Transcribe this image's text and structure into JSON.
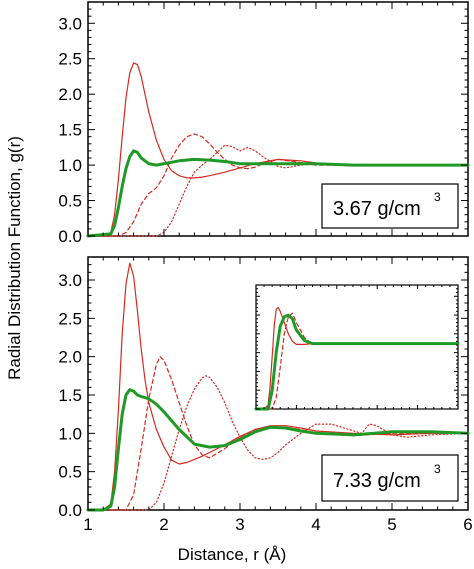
{
  "chart_data": [
    {
      "type": "line",
      "panel": "top",
      "annotation": {
        "text": "3.67 g/cm",
        "sup": "3"
      },
      "xlim": [
        1,
        6
      ],
      "ylim": [
        0,
        3.3
      ],
      "x_ticks": [
        "1",
        "2",
        "3",
        "4",
        "5",
        "6"
      ],
      "x_tick_labels_shown": false,
      "y_ticks": [
        "0.0",
        "0.5",
        "1.0",
        "1.5",
        "2.0",
        "2.5",
        "3.0"
      ],
      "colors": {
        "red": "#d42a20",
        "green": "#1f9a26"
      },
      "series": [
        {
          "style": "solid",
          "color": "red",
          "width": 1.2,
          "x": [
            1.0,
            1.2,
            1.3,
            1.35,
            1.4,
            1.45,
            1.5,
            1.55,
            1.6,
            1.65,
            1.7,
            1.75,
            1.8,
            1.9,
            2.0,
            2.1,
            2.2,
            2.3,
            2.4,
            2.5,
            2.6,
            2.8,
            3.0,
            3.2,
            3.5,
            3.8,
            4.0,
            4.5,
            5.0,
            5.5,
            6.0
          ],
          "y": [
            0.0,
            0.0,
            0.05,
            0.3,
            0.8,
            1.4,
            1.95,
            2.3,
            2.44,
            2.42,
            2.25,
            2.0,
            1.75,
            1.35,
            1.08,
            0.92,
            0.85,
            0.82,
            0.82,
            0.83,
            0.85,
            0.9,
            0.96,
            1.02,
            1.08,
            1.06,
            1.03,
            1.0,
            1.0,
            1.0,
            1.0
          ]
        },
        {
          "style": "dashed",
          "color": "red",
          "width": 1.2,
          "x": [
            1.0,
            1.4,
            1.5,
            1.6,
            1.7,
            1.8,
            1.9,
            2.0,
            2.1,
            2.2,
            2.3,
            2.4,
            2.5,
            2.6,
            2.7,
            2.8,
            2.9,
            3.0,
            3.1,
            3.2,
            3.3,
            3.5,
            3.7,
            4.0,
            4.5,
            5.0,
            6.0
          ],
          "y": [
            0.0,
            0.0,
            0.05,
            0.2,
            0.45,
            0.6,
            0.68,
            0.85,
            1.1,
            1.28,
            1.4,
            1.44,
            1.4,
            1.3,
            1.18,
            1.08,
            1.0,
            0.96,
            0.95,
            0.97,
            1.02,
            1.08,
            1.05,
            1.0,
            1.0,
            1.0,
            1.0
          ]
        },
        {
          "style": "dotted",
          "color": "red",
          "width": 1.2,
          "x": [
            1.0,
            1.9,
            2.0,
            2.1,
            2.2,
            2.3,
            2.4,
            2.5,
            2.6,
            2.7,
            2.8,
            2.9,
            3.0,
            3.1,
            3.2,
            3.3,
            3.4,
            3.5,
            3.6,
            3.8,
            4.0,
            4.5,
            5.0,
            6.0
          ],
          "y": [
            0.0,
            0.0,
            0.05,
            0.2,
            0.45,
            0.7,
            0.9,
            1.0,
            1.08,
            1.18,
            1.28,
            1.26,
            1.2,
            1.25,
            1.2,
            1.12,
            1.05,
            0.98,
            0.96,
            1.0,
            1.02,
            1.0,
            1.0,
            1.0
          ]
        },
        {
          "style": "solid",
          "color": "green",
          "width": 3,
          "x": [
            1.0,
            1.3,
            1.35,
            1.4,
            1.45,
            1.5,
            1.55,
            1.6,
            1.65,
            1.7,
            1.8,
            1.9,
            2.0,
            2.2,
            2.4,
            2.6,
            2.8,
            3.0,
            3.5,
            4.0,
            4.5,
            5.0,
            5.5,
            6.0
          ],
          "y": [
            0.0,
            0.03,
            0.15,
            0.4,
            0.7,
            0.95,
            1.12,
            1.2,
            1.18,
            1.1,
            1.02,
            1.0,
            1.02,
            1.06,
            1.08,
            1.07,
            1.05,
            1.02,
            1.02,
            1.02,
            1.0,
            1.0,
            1.0,
            1.0
          ]
        }
      ]
    },
    {
      "type": "line",
      "panel": "bottom",
      "annotation": {
        "text": "7.33 g/cm",
        "sup": "3"
      },
      "xlim": [
        1,
        6
      ],
      "ylim": [
        0,
        3.3
      ],
      "x_ticks": [
        "1",
        "2",
        "3",
        "4",
        "5",
        "6"
      ],
      "y_ticks": [
        "0.0",
        "0.5",
        "1.0",
        "1.5",
        "2.0",
        "2.5",
        "3.0"
      ],
      "xlabel": "Distance, r (Å)",
      "series": [
        {
          "style": "solid",
          "color": "red",
          "width": 1.2,
          "x": [
            1.0,
            1.2,
            1.3,
            1.35,
            1.4,
            1.45,
            1.5,
            1.55,
            1.6,
            1.65,
            1.7,
            1.75,
            1.8,
            1.9,
            2.0,
            2.1,
            2.2,
            2.3,
            2.4,
            2.5,
            2.6,
            2.8,
            3.0,
            3.2,
            3.4,
            3.6,
            3.8,
            4.0,
            4.5,
            5.0,
            5.5,
            6.0
          ],
          "y": [
            0.0,
            0.0,
            0.08,
            0.5,
            1.3,
            2.3,
            2.95,
            3.22,
            3.05,
            2.6,
            2.1,
            1.7,
            1.4,
            1.05,
            0.82,
            0.65,
            0.6,
            0.62,
            0.66,
            0.7,
            0.75,
            0.85,
            0.96,
            1.05,
            1.1,
            1.1,
            1.07,
            1.03,
            1.0,
            0.98,
            1.0,
            1.0
          ]
        },
        {
          "style": "dashed",
          "color": "red",
          "width": 1.2,
          "x": [
            1.0,
            1.5,
            1.6,
            1.7,
            1.8,
            1.9,
            1.95,
            2.0,
            2.1,
            2.2,
            2.3,
            2.4,
            2.5,
            2.6,
            2.8,
            3.0,
            3.2,
            3.4,
            3.6,
            3.8,
            4.0,
            4.5,
            5.0,
            5.5,
            6.0
          ],
          "y": [
            0.0,
            0.0,
            0.2,
            0.8,
            1.45,
            1.9,
            2.0,
            1.95,
            1.7,
            1.4,
            1.1,
            0.85,
            0.72,
            0.68,
            0.8,
            0.95,
            1.05,
            1.08,
            1.08,
            1.05,
            1.0,
            0.97,
            1.0,
            1.0,
            1.0
          ]
        },
        {
          "style": "dotted",
          "color": "red",
          "width": 1.2,
          "x": [
            1.0,
            1.8,
            1.9,
            2.0,
            2.1,
            2.2,
            2.3,
            2.4,
            2.5,
            2.55,
            2.6,
            2.7,
            2.8,
            2.9,
            3.0,
            3.1,
            3.2,
            3.3,
            3.4,
            3.5,
            3.6,
            3.8,
            4.0,
            4.2,
            4.4,
            4.6,
            4.7,
            4.8,
            5.0,
            5.2,
            5.5,
            6.0
          ],
          "y": [
            0.0,
            0.0,
            0.1,
            0.35,
            0.7,
            1.05,
            1.35,
            1.58,
            1.72,
            1.75,
            1.73,
            1.6,
            1.4,
            1.15,
            0.95,
            0.78,
            0.68,
            0.66,
            0.68,
            0.75,
            0.85,
            1.0,
            1.12,
            1.12,
            1.06,
            1.0,
            1.12,
            1.1,
            0.98,
            0.95,
            0.98,
            1.0
          ]
        },
        {
          "style": "solid",
          "color": "green",
          "width": 3,
          "x": [
            1.0,
            1.2,
            1.3,
            1.35,
            1.4,
            1.45,
            1.5,
            1.55,
            1.6,
            1.65,
            1.7,
            1.8,
            1.9,
            2.0,
            2.2,
            2.4,
            2.6,
            2.8,
            3.0,
            3.2,
            3.4,
            3.6,
            3.8,
            4.0,
            4.5,
            5.0,
            5.5,
            6.0
          ],
          "y": [
            0.0,
            0.0,
            0.05,
            0.3,
            0.8,
            1.25,
            1.5,
            1.57,
            1.55,
            1.5,
            1.48,
            1.45,
            1.38,
            1.28,
            1.05,
            0.86,
            0.82,
            0.84,
            0.92,
            1.02,
            1.08,
            1.07,
            1.03,
            1.0,
            0.98,
            1.02,
            1.02,
            1.0
          ]
        }
      ]
    },
    {
      "type": "line",
      "panel": "inset",
      "xlim": [
        1,
        6
      ],
      "ylim": [
        0,
        3.3
      ],
      "tick_labels_shown": false,
      "series": [
        {
          "style": "solid",
          "color": "red",
          "width": 1.2,
          "x": [
            1.0,
            1.2,
            1.3,
            1.35,
            1.4,
            1.45,
            1.5,
            1.55,
            1.6,
            1.65,
            1.7,
            1.8,
            1.9,
            2.0,
            2.2,
            2.4,
            2.6,
            3.0,
            4.0,
            6.0
          ],
          "y": [
            0.0,
            0.0,
            0.1,
            0.6,
            1.4,
            2.2,
            2.65,
            2.7,
            2.6,
            2.45,
            2.3,
            2.0,
            1.8,
            1.72,
            1.72,
            1.74,
            1.74,
            1.74,
            1.74,
            1.74
          ]
        },
        {
          "style": "dashed",
          "color": "red",
          "width": 1.2,
          "x": [
            1.0,
            1.4,
            1.5,
            1.6,
            1.7,
            1.8,
            1.9,
            2.0,
            2.2,
            2.4,
            2.6,
            3.0,
            4.0,
            6.0
          ],
          "y": [
            0.0,
            0.0,
            0.3,
            1.1,
            2.0,
            2.45,
            2.55,
            2.3,
            1.9,
            1.72,
            1.74,
            1.74,
            1.74,
            1.74
          ]
        },
        {
          "style": "solid",
          "color": "green",
          "width": 3,
          "x": [
            1.0,
            1.3,
            1.4,
            1.5,
            1.6,
            1.7,
            1.8,
            1.9,
            2.0,
            2.2,
            2.4,
            3.0,
            4.0,
            6.0
          ],
          "y": [
            0.0,
            0.0,
            0.5,
            1.5,
            2.2,
            2.45,
            2.5,
            2.4,
            2.1,
            1.82,
            1.74,
            1.74,
            1.74,
            1.74
          ]
        }
      ]
    }
  ],
  "ylabel": "Radial Distribution Function, g(r)"
}
